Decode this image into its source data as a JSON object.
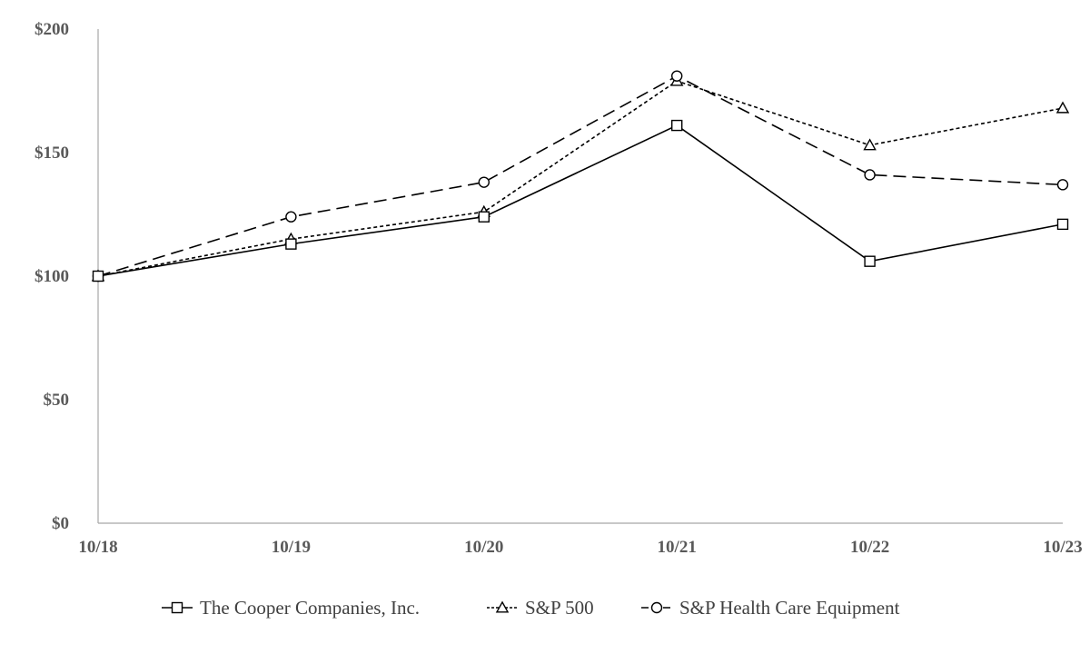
{
  "chart_data": {
    "type": "line",
    "title": "",
    "xlabel": "",
    "ylabel": "",
    "categories": [
      "10/18",
      "10/19",
      "10/20",
      "10/21",
      "10/22",
      "10/23"
    ],
    "y_ticks": [
      "$0",
      "$50",
      "$100",
      "$150",
      "$200"
    ],
    "y_tick_values": [
      0,
      50,
      100,
      150,
      200
    ],
    "ylim": [
      0,
      200
    ],
    "grid": false,
    "legend_position": "bottom",
    "series": [
      {
        "name": "The Cooper Companies, Inc.",
        "values": [
          100,
          113,
          124,
          161,
          106,
          121
        ],
        "marker": "square",
        "dash": "solid",
        "color": "#000000"
      },
      {
        "name": "S&P 500",
        "values": [
          100,
          115,
          126,
          179,
          153,
          168
        ],
        "marker": "triangle",
        "dash": "dotted",
        "color": "#000000"
      },
      {
        "name": "S&P Health Care Equipment",
        "values": [
          100,
          124,
          138,
          181,
          141,
          137
        ],
        "marker": "circle",
        "dash": "dashed",
        "color": "#000000"
      }
    ]
  }
}
